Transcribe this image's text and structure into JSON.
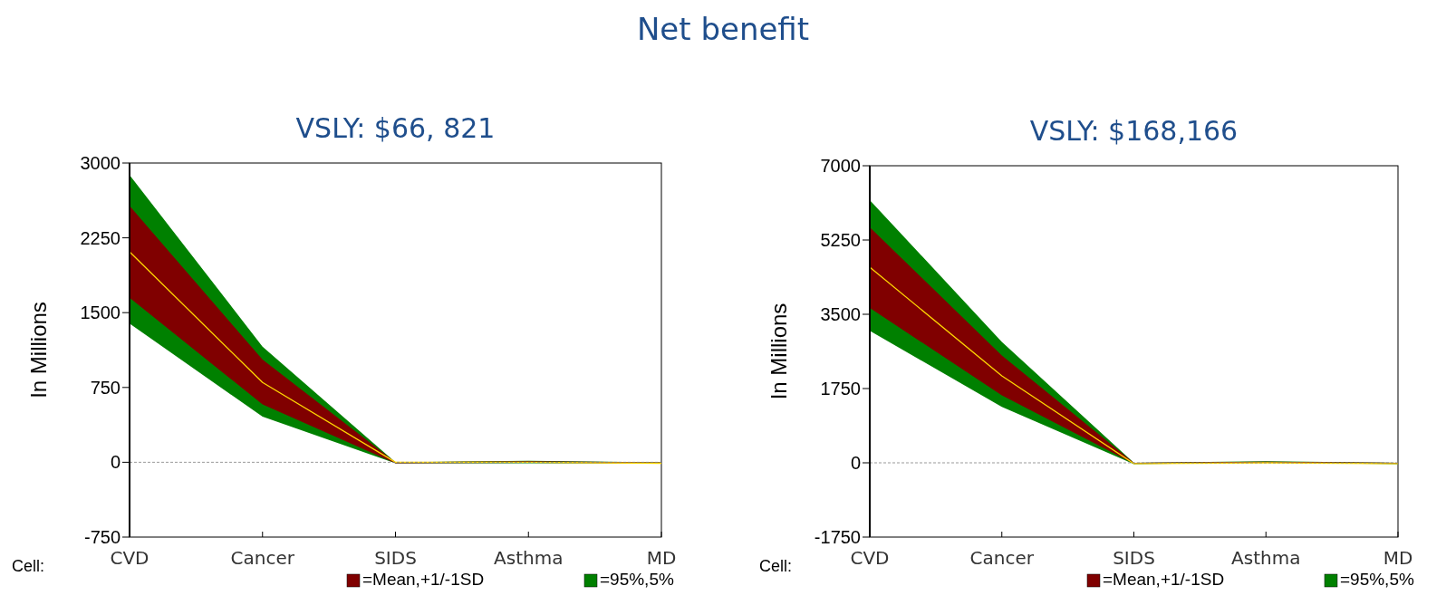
{
  "chart_data": [
    {
      "type": "area",
      "title": "VSLY: $66, 821",
      "ylabel": "In Millions",
      "xlabel": "Cell:",
      "annotations": [
        "Net benefit"
      ],
      "categories": [
        "CVD",
        "Cancer",
        "SIDS",
        "Asthma",
        "MD"
      ],
      "ylim": [
        -750,
        3000
      ],
      "yticks": [
        {
          "value": -750,
          "label": "-750"
        },
        0,
        750,
        1500,
        2250,
        3000
      ],
      "legend": "bottom",
      "ref_lines": [
        {
          "axis": "y",
          "value": 0,
          "color": "#808080",
          "line_style": "dashed"
        }
      ],
      "series": [
        {
          "name": "=95%,5%",
          "color": "#008000",
          "values": [
            null,
            null,
            null,
            null,
            null
          ],
          "lower": [
            1390,
            457,
            -10,
            -10,
            -10
          ],
          "upper": [
            2880,
            1160,
            0,
            15,
            0
          ]
        },
        {
          "name": "=Mean,+1/-1SD",
          "color": "#800000",
          "values": [
            null,
            null,
            null,
            null,
            null
          ],
          "lower": [
            1650,
            580,
            -10,
            -5,
            -10
          ],
          "upper": [
            2570,
            1030,
            0,
            10,
            0
          ]
        },
        {
          "type": "line",
          "color": "#ffd700",
          "values": [
            2110,
            800,
            0,
            0,
            -10
          ]
        }
      ]
    },
    {
      "type": "area",
      "title": "VSLY: $168,166",
      "ylabel": "In Millions",
      "xlabel": "Cell:",
      "categories": [
        "CVD",
        "Cancer",
        "SIDS",
        "Asthma",
        "MD"
      ],
      "ylim": [
        -1750,
        7000
      ],
      "yticks": [
        {
          "value": -1750,
          "label": "-1750"
        },
        0,
        1750,
        3500,
        5250,
        7000
      ],
      "legend": "bottom",
      "ref_lines": [
        {
          "axis": "y",
          "value": 0,
          "color": "#808080",
          "line_style": "dashed"
        }
      ],
      "series": [
        {
          "name": "=95%,5%",
          "color": "#008000",
          "values": [
            null,
            null,
            null,
            null,
            null
          ],
          "lower": [
            3110,
            1320,
            -30,
            0,
            -30
          ],
          "upper": [
            6190,
            2850,
            0,
            40,
            0
          ]
        },
        {
          "name": "=Mean,+1/-1SD",
          "color": "#800000",
          "values": [
            null,
            null,
            null,
            null,
            null
          ],
          "lower": [
            3650,
            1590,
            -20,
            5,
            -20
          ],
          "upper": [
            5550,
            2530,
            0,
            25,
            0
          ]
        },
        {
          "type": "line",
          "color": "#ffd700",
          "values": [
            4610,
            2050,
            -20,
            0,
            -20
          ]
        }
      ]
    }
  ]
}
